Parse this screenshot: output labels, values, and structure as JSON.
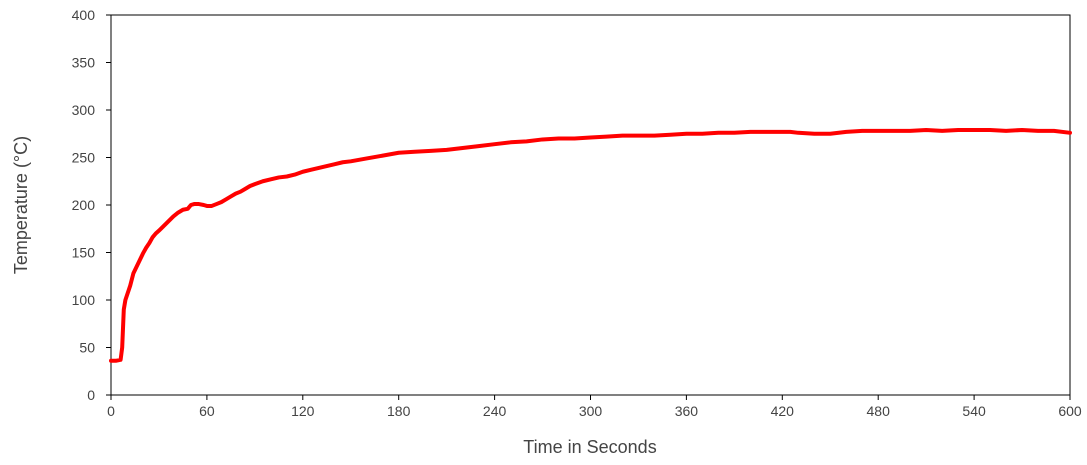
{
  "chart_data": {
    "type": "line",
    "title": "",
    "xlabel": "Time in Seconds",
    "ylabel": "Temperature (°C)",
    "xlim": [
      0,
      600
    ],
    "ylim": [
      0,
      400
    ],
    "x_ticks": [
      0,
      60,
      120,
      180,
      240,
      300,
      360,
      420,
      480,
      540,
      600
    ],
    "y_ticks": [
      0,
      50,
      100,
      150,
      200,
      250,
      300,
      350,
      400
    ],
    "grid": false,
    "legend": "none",
    "series": [
      {
        "color": "#ff0000",
        "x": [
          0,
          3,
          6,
          7,
          8,
          9,
          10,
          12,
          14,
          16,
          18,
          20,
          22,
          24,
          26,
          28,
          30,
          33,
          36,
          39,
          42,
          45,
          48,
          50,
          52,
          55,
          58,
          60,
          63,
          66,
          69,
          72,
          75,
          78,
          81,
          84,
          87,
          90,
          95,
          100,
          105,
          110,
          115,
          120,
          125,
          130,
          135,
          140,
          145,
          150,
          160,
          170,
          180,
          190,
          200,
          210,
          220,
          230,
          240,
          250,
          260,
          270,
          280,
          290,
          300,
          310,
          320,
          330,
          340,
          350,
          360,
          370,
          380,
          390,
          400,
          410,
          420,
          425,
          430,
          440,
          450,
          460,
          470,
          480,
          490,
          500,
          510,
          520,
          530,
          540,
          550,
          560,
          570,
          580,
          590,
          600
        ],
        "y": [
          36,
          36,
          37,
          50,
          90,
          100,
          105,
          115,
          128,
          135,
          142,
          149,
          155,
          160,
          166,
          170,
          173,
          178,
          183,
          188,
          192,
          195,
          196,
          200,
          201,
          201,
          200,
          199,
          199,
          201,
          203,
          206,
          209,
          212,
          214,
          217,
          220,
          222,
          225,
          227,
          229,
          230,
          232,
          235,
          237,
          239,
          241,
          243,
          245,
          246,
          249,
          252,
          255,
          256,
          257,
          258,
          260,
          262,
          264,
          266,
          267,
          269,
          270,
          270,
          271,
          272,
          273,
          273,
          273,
          274,
          275,
          275,
          276,
          276,
          277,
          277,
          277,
          277,
          276,
          275,
          275,
          277,
          278,
          278,
          278,
          278,
          279,
          278,
          279,
          279,
          279,
          278,
          279,
          278,
          278,
          276
        ]
      }
    ]
  }
}
